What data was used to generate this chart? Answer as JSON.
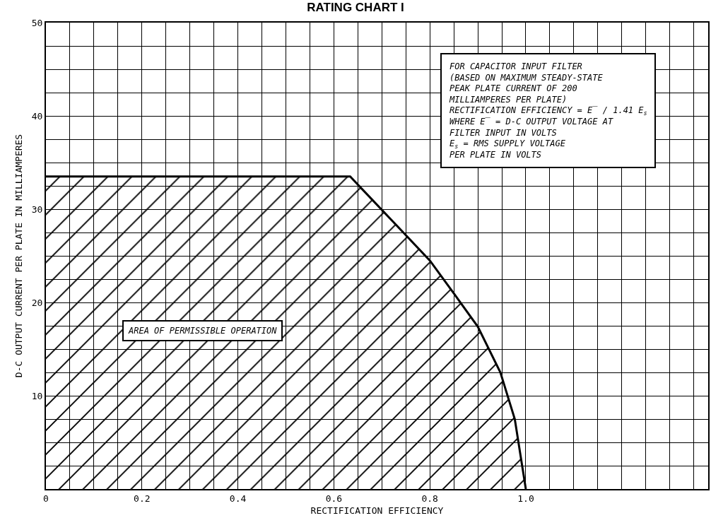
{
  "chart_data": {
    "type": "area",
    "title": "RATING CHART I",
    "xlabel": "RECTIFICATION EFFICIENCY",
    "ylabel": "D-C OUTPUT CURRENT PER PLATE IN MILLIAMPERES",
    "x": [
      0,
      0.634,
      0.743,
      0.8,
      0.851,
      0.9,
      0.947,
      0.977,
      1.0
    ],
    "series": [
      {
        "color": "#000000",
        "values": [
          33.5,
          33.5,
          27.6,
          24.5,
          20.9,
          17.4,
          12.5,
          7.5,
          0
        ]
      }
    ],
    "xlim": [
      0,
      1.38
    ],
    "xticks": [
      0,
      {
        "value": 0.05,
        "label": null
      },
      {
        "value": 0.1,
        "label": null
      },
      {
        "value": 0.15,
        "label": null
      },
      {
        "value": 0.2,
        "label": "0.2"
      },
      {
        "value": 0.25,
        "label": null
      },
      {
        "value": 0.3,
        "label": null
      },
      {
        "value": 0.35,
        "label": null
      },
      {
        "value": 0.4,
        "label": "0.4"
      },
      {
        "value": 0.45,
        "label": null
      },
      {
        "value": 0.5,
        "label": null
      },
      {
        "value": 0.55,
        "label": null
      },
      {
        "value": 0.6,
        "label": "0.6"
      },
      {
        "value": 0.65,
        "label": null
      },
      {
        "value": 0.7,
        "label": null
      },
      {
        "value": 0.75,
        "label": null
      },
      {
        "value": 0.8,
        "label": "0.8"
      },
      {
        "value": 0.85,
        "label": null
      },
      {
        "value": 0.9,
        "label": null
      },
      {
        "value": 0.95,
        "label": null
      },
      {
        "value": 1.0,
        "label": "1.0"
      },
      {
        "value": 1.05,
        "label": null
      },
      {
        "value": 1.1,
        "label": null
      },
      {
        "value": 1.15,
        "label": null
      },
      {
        "value": 1.2,
        "label": null
      },
      {
        "value": 1.25,
        "label": null
      },
      {
        "value": 1.3,
        "label": null
      },
      {
        "value": 1.35,
        "label": null
      }
    ],
    "ylim": [
      0,
      50
    ],
    "yticks": [
      {
        "value": 0,
        "label": null
      },
      {
        "value": 2.5,
        "label": null
      },
      {
        "value": 5,
        "label": null
      },
      {
        "value": 7.5,
        "label": null
      },
      10,
      {
        "value": 12.5,
        "label": null
      },
      {
        "value": 15,
        "label": null
      },
      {
        "value": 17.5,
        "label": null
      },
      20,
      {
        "value": 22.5,
        "label": null
      },
      {
        "value": 25,
        "label": null
      },
      {
        "value": 27.5,
        "label": null
      },
      30,
      {
        "value": 32.5,
        "label": null
      },
      {
        "value": 35,
        "label": null
      },
      {
        "value": 37.5,
        "label": null
      },
      40,
      {
        "value": 42.5,
        "label": null
      },
      {
        "value": 45,
        "label": null
      },
      {
        "value": 47.5,
        "label": null
      },
      50
    ],
    "grid": true,
    "annotations": [
      "AREA OF PERMISSIBLE OPERATION",
      "FOR CAPACITOR INPUT FILTER",
      "(BASED ON MAXIMUM STEADY-STATE",
      "PEAK PLATE CURRENT OF 200",
      "MILLIAMPERES PER PLATE)",
      "RECTIFICATION EFFICIENCY = E̅ / 1.41 E$_{s}$",
      "WHERE E̅ = D-C OUTPUT VOLTAGE AT",
      "FILTER INPUT IN VOLTS",
      "E$_{s}$ = RMS SUPPLY VOLTAGE",
      "PER PLATE IN VOLTS"
    ]
  }
}
